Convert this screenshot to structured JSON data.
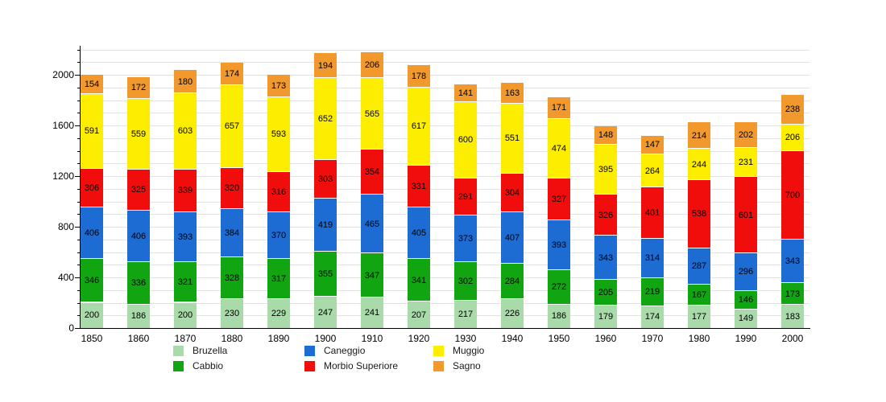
{
  "chart_data": {
    "type": "bar",
    "stacked": true,
    "title": "",
    "categories": [
      "1850",
      "1860",
      "1870",
      "1880",
      "1890",
      "1900",
      "1910",
      "1920",
      "1930",
      "1940",
      "1950",
      "1960",
      "1970",
      "1980",
      "1990",
      "2000"
    ],
    "series": [
      {
        "name": "Bruzella",
        "color": "#a9daa9",
        "values": [
          200,
          186,
          200,
          230,
          229,
          247,
          241,
          207,
          217,
          226,
          186,
          179,
          174,
          177,
          149,
          183
        ]
      },
      {
        "name": "Cabbio",
        "color": "#12a512",
        "values": [
          346,
          336,
          321,
          328,
          317,
          355,
          347,
          341,
          302,
          284,
          272,
          205,
          219,
          167,
          146,
          173
        ]
      },
      {
        "name": "Caneggio",
        "color": "#1c6cd3",
        "values": [
          406,
          406,
          393,
          384,
          370,
          419,
          465,
          405,
          373,
          407,
          393,
          343,
          314,
          287,
          296,
          343
        ]
      },
      {
        "name": "Morbio Superiore",
        "color": "#f20d0d",
        "values": [
          306,
          325,
          339,
          320,
          316,
          303,
          354,
          331,
          291,
          304,
          327,
          326,
          401,
          538,
          601,
          700
        ]
      },
      {
        "name": "Muggio",
        "color": "#fdee00",
        "values": [
          591,
          559,
          603,
          657,
          593,
          652,
          565,
          617,
          600,
          551,
          474,
          395,
          264,
          244,
          231,
          206
        ]
      },
      {
        "name": "Sagno",
        "color": "#f2992e",
        "values": [
          154,
          172,
          180,
          174,
          173,
          194,
          206,
          178,
          141,
          163,
          171,
          148,
          147,
          214,
          202,
          238
        ]
      }
    ],
    "y_axis": {
      "min": 0,
      "max": 2200,
      "major_ticks": [
        0,
        400,
        800,
        1200,
        1600,
        2000
      ],
      "minor_step": 100
    },
    "x_axis": {
      "label": ""
    },
    "grid": true,
    "grid_color": "#e2e2e2",
    "axis_color": "#000000",
    "legend": {
      "position": "bottom",
      "rows": 2,
      "columns": 3
    }
  }
}
